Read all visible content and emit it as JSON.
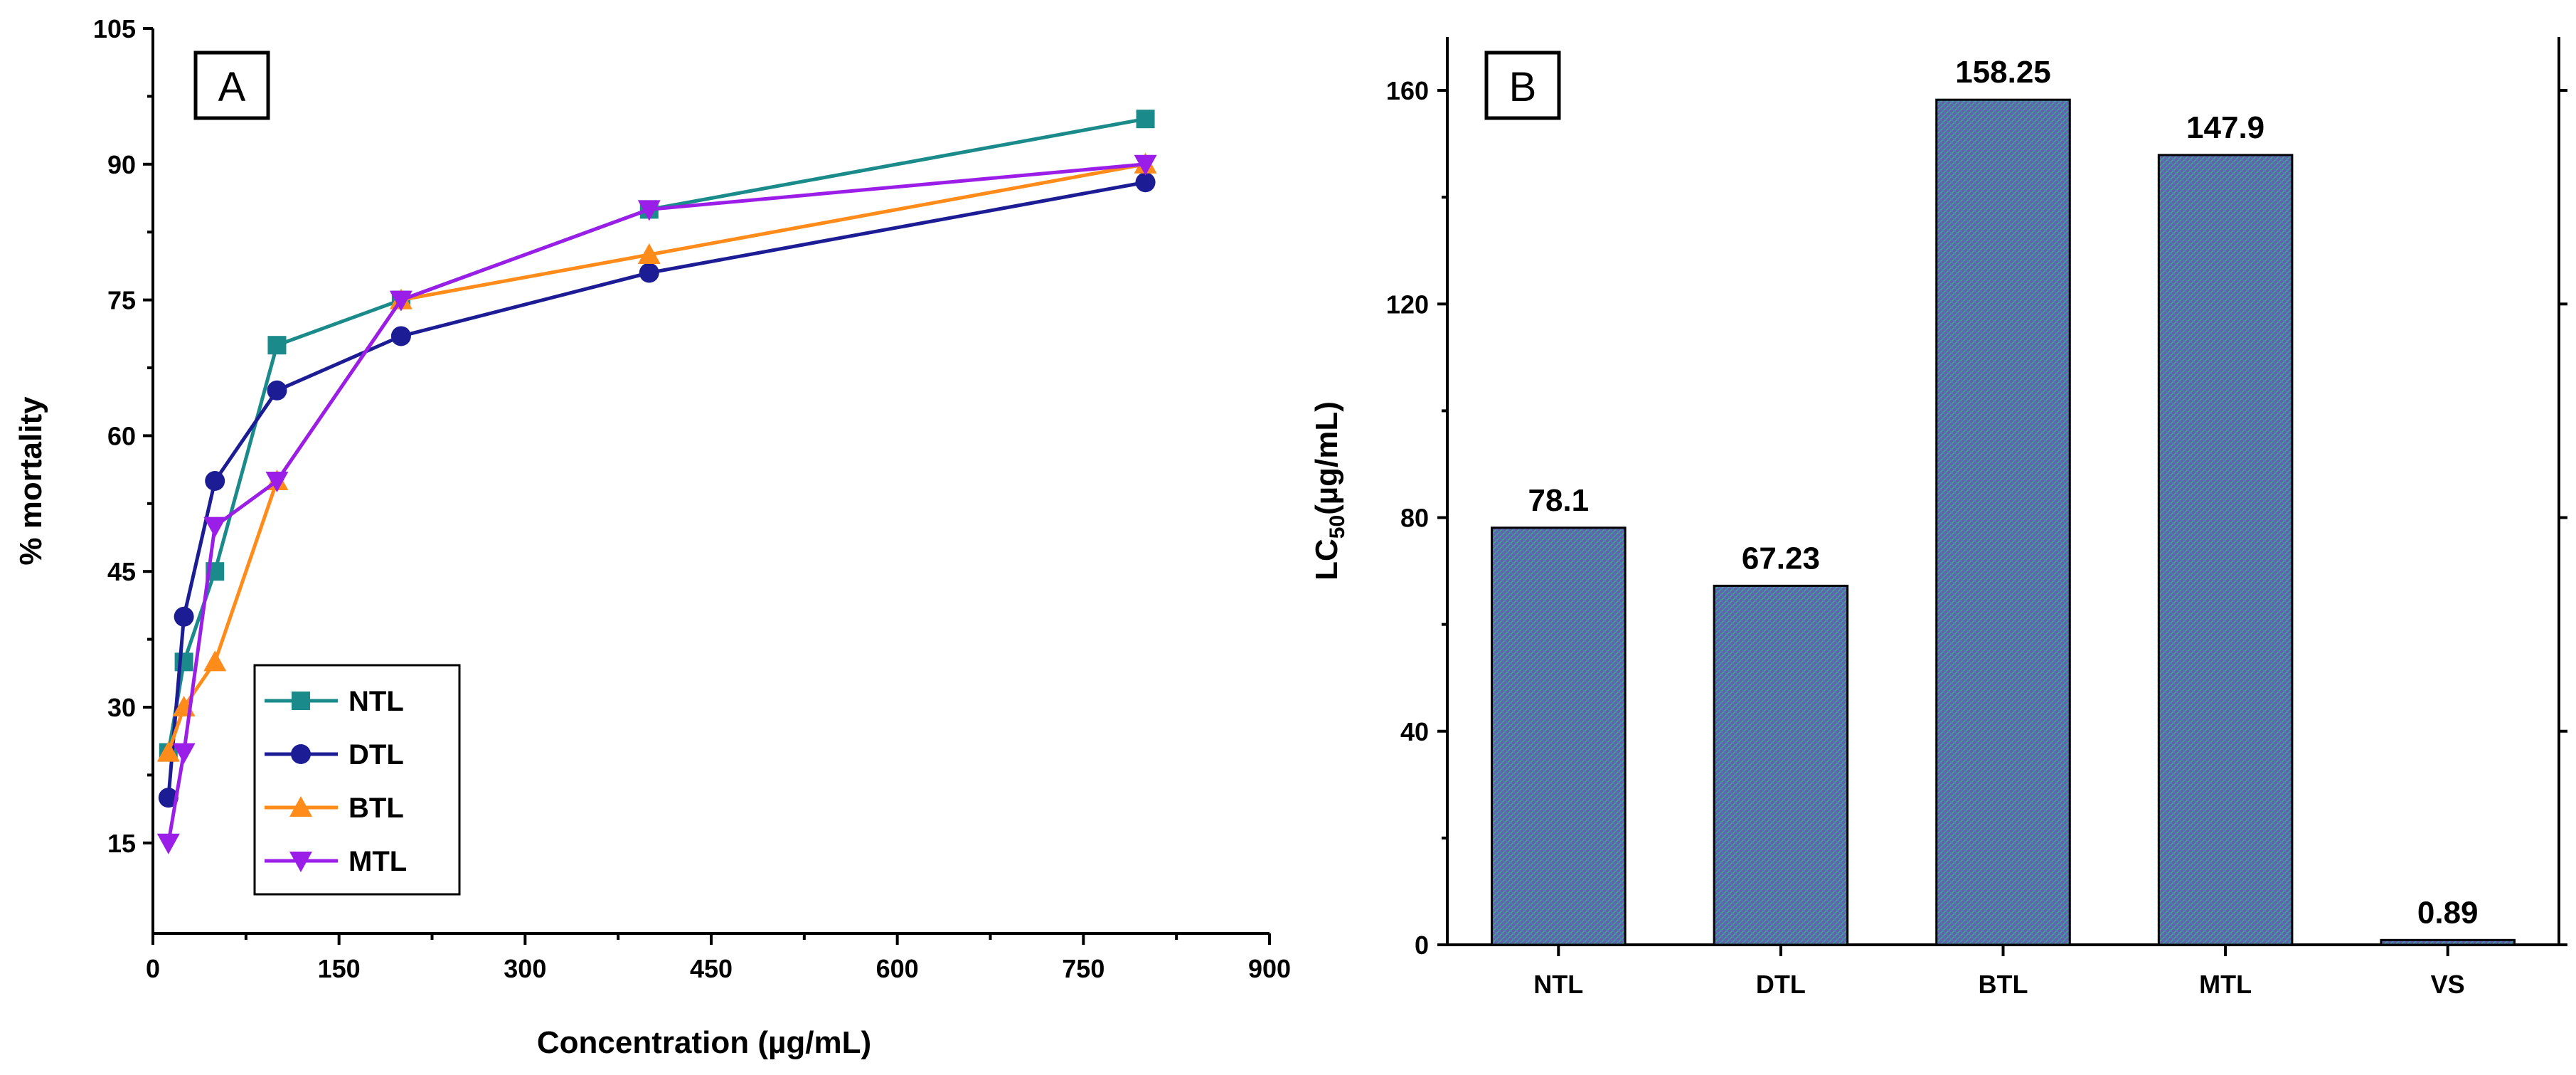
{
  "chart_data": [
    {
      "type": "line",
      "panel_label": "A",
      "title": "",
      "xlabel": "Concentration (µg/mL)",
      "ylabel": "% mortality",
      "xlim": [
        0,
        900
      ],
      "ylim": [
        5,
        105
      ],
      "xticks": [
        0,
        150,
        300,
        450,
        600,
        750,
        900
      ],
      "yticks": [
        15,
        30,
        45,
        60,
        75,
        90,
        105
      ],
      "x": [
        12.5,
        25,
        50,
        100,
        200,
        400,
        800
      ],
      "legend_position": "lower-left",
      "series": [
        {
          "name": "NTL",
          "color": "#1a8a8a",
          "marker": "square",
          "values": [
            25,
            35,
            45,
            70,
            75,
            85,
            95
          ]
        },
        {
          "name": "DTL",
          "color": "#1c1c94",
          "marker": "circle",
          "values": [
            20,
            40,
            55,
            65,
            71,
            78,
            88
          ]
        },
        {
          "name": "BTL",
          "color": "#ff8c1a",
          "marker": "triangle-up",
          "values": [
            25,
            30,
            35,
            55,
            75,
            80,
            90
          ]
        },
        {
          "name": "MTL",
          "color": "#9b1ee8",
          "marker": "triangle-down",
          "values": [
            15,
            25,
            50,
            55,
            75,
            85,
            90
          ]
        }
      ]
    },
    {
      "type": "bar",
      "panel_label": "B",
      "title": "",
      "xlabel": "",
      "ylabel_main": "LC",
      "ylabel_sub": "50",
      "ylabel_unit": "(µg/mL)",
      "ylim": [
        0,
        170
      ],
      "yticks": [
        0,
        40,
        80,
        120,
        160
      ],
      "categories": [
        "NTL",
        "DTL",
        "BTL",
        "MTL",
        "VS"
      ],
      "values": [
        78.1,
        67.23,
        158.25,
        147.9,
        0.89
      ],
      "value_labels": [
        "78.1",
        "67.23",
        "158.25",
        "147.9",
        "0.89"
      ],
      "bar_color": "#6a5aa8",
      "bar_pattern_color": "#3da88a"
    }
  ]
}
